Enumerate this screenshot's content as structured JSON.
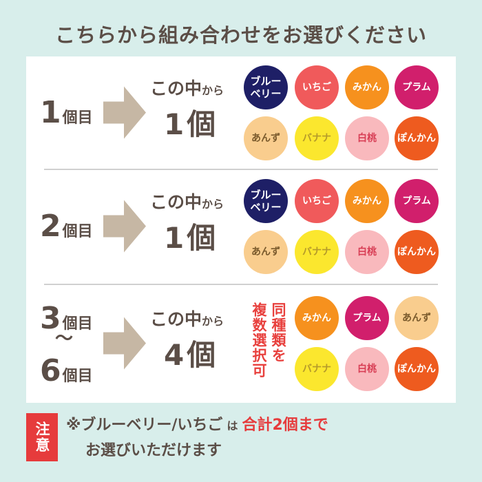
{
  "title": "こちらから組み合わせをお選びください",
  "rows": [
    {
      "label": [
        {
          "number": "1",
          "unit": "個目"
        }
      ],
      "instruction": {
        "prefix": "この中",
        "suffix": "から",
        "count": "1",
        "unit": "個"
      },
      "options": [
        {
          "lines": [
            "ブルー",
            "ベリー"
          ],
          "color": "#1e1f66",
          "text_color": "#ffffff"
        },
        {
          "lines": [
            "いちご"
          ],
          "color": "#f05a5b",
          "text_color": "#ffffff"
        },
        {
          "lines": [
            "みかん"
          ],
          "color": "#f6911e",
          "text_color": "#ffffff"
        },
        {
          "lines": [
            "プラム"
          ],
          "color": "#d11f6c",
          "text_color": "#ffffff"
        },
        {
          "lines": [
            "あんず"
          ],
          "color": "#f9cd8e",
          "text_color": "#7a5a2c"
        },
        {
          "lines": [
            "バナナ"
          ],
          "color": "#fbe72e",
          "text_color": "#b59a2a"
        },
        {
          "lines": [
            "白桃"
          ],
          "color": "#f9b9bd",
          "text_color": "#d83e55"
        },
        {
          "lines": [
            "ぽんかん"
          ],
          "color": "#ee5b1f",
          "text_color": "#ffffff"
        }
      ]
    },
    {
      "label": [
        {
          "number": "2",
          "unit": "個目"
        }
      ],
      "instruction": {
        "prefix": "この中",
        "suffix": "から",
        "count": "1",
        "unit": "個"
      },
      "options": [
        {
          "lines": [
            "ブルー",
            "ベリー"
          ],
          "color": "#1e1f66",
          "text_color": "#ffffff"
        },
        {
          "lines": [
            "いちご"
          ],
          "color": "#f05a5b",
          "text_color": "#ffffff"
        },
        {
          "lines": [
            "みかん"
          ],
          "color": "#f6911e",
          "text_color": "#ffffff"
        },
        {
          "lines": [
            "プラム"
          ],
          "color": "#d11f6c",
          "text_color": "#ffffff"
        },
        {
          "lines": [
            "あんず"
          ],
          "color": "#f9cd8e",
          "text_color": "#7a5a2c"
        },
        {
          "lines": [
            "バナナ"
          ],
          "color": "#fbe72e",
          "text_color": "#b59a2a"
        },
        {
          "lines": [
            "白桃"
          ],
          "color": "#f9b9bd",
          "text_color": "#d83e55"
        },
        {
          "lines": [
            "ぽんかん"
          ],
          "color": "#ee5b1f",
          "text_color": "#ffffff"
        }
      ]
    },
    {
      "label": [
        {
          "number": "3",
          "unit": "個目"
        },
        {
          "number": "6",
          "unit": "個目"
        }
      ],
      "label_separator": "～",
      "instruction": {
        "prefix": "この中",
        "suffix": "から",
        "count": "4",
        "unit": "個"
      },
      "note": [
        "同種類を",
        "複数選択可"
      ],
      "options": [
        {
          "lines": [
            "みかん"
          ],
          "color": "#f6911e",
          "text_color": "#ffffff"
        },
        {
          "lines": [
            "プラム"
          ],
          "color": "#d11f6c",
          "text_color": "#ffffff"
        },
        {
          "lines": [
            "あんず"
          ],
          "color": "#f9cd8e",
          "text_color": "#7a5a2c"
        },
        {
          "lines": [
            "バナナ"
          ],
          "color": "#fbe72e",
          "text_color": "#b59a2a"
        },
        {
          "lines": [
            "白桃"
          ],
          "color": "#f9b9bd",
          "text_color": "#d83e55"
        },
        {
          "lines": [
            "ぽんかん"
          ],
          "color": "#ee5b1f",
          "text_color": "#ffffff"
        }
      ]
    }
  ],
  "notice": {
    "badge": "注意",
    "line1": [
      {
        "text": "※ブルーベリー/いちご"
      },
      {
        "text": "は"
      },
      {
        "text": "合計2個まで"
      }
    ],
    "line2": "お選びいただけます"
  }
}
